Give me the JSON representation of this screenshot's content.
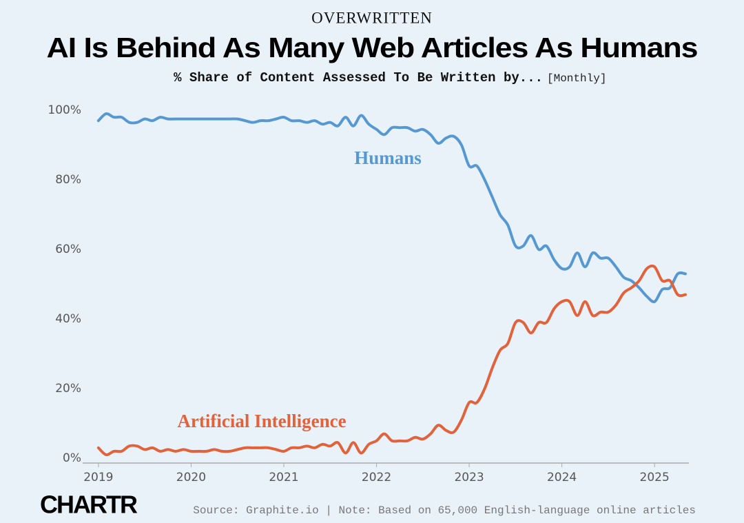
{
  "chart_data": {
    "type": "line",
    "kicker": "OVERWRITTEN",
    "title": "AI Is Behind As Many Web Articles As Humans",
    "subtitle": "% Share of Content Assessed To Be Written by...",
    "frequency": "[Monthly]",
    "source": "Source: Graphite.io | Note: Based on 65,000 English-language online articles",
    "brand": "CHARTR",
    "x": [
      2019,
      2019.083,
      2019.167,
      2019.25,
      2019.333,
      2019.417,
      2019.5,
      2019.583,
      2019.667,
      2019.75,
      2019.833,
      2019.917,
      2020,
      2020.083,
      2020.167,
      2020.25,
      2020.333,
      2020.417,
      2020.5,
      2020.583,
      2020.667,
      2020.75,
      2020.833,
      2020.917,
      2021,
      2021.083,
      2021.167,
      2021.25,
      2021.333,
      2021.417,
      2021.5,
      2021.583,
      2021.667,
      2021.75,
      2021.833,
      2021.917,
      2022,
      2022.083,
      2022.167,
      2022.25,
      2022.333,
      2022.417,
      2022.5,
      2022.583,
      2022.667,
      2022.75,
      2022.833,
      2022.917,
      2023,
      2023.083,
      2023.167,
      2023.25,
      2023.333,
      2023.417,
      2023.5,
      2023.583,
      2023.667,
      2023.75,
      2023.833,
      2023.917,
      2024,
      2024.083,
      2024.167,
      2024.25,
      2024.333,
      2024.417,
      2024.5,
      2024.583,
      2024.667,
      2024.75,
      2024.833,
      2024.917,
      2025,
      2025.083,
      2025.167,
      2025.25,
      2025.333
    ],
    "series": [
      {
        "name": "Humans",
        "color": "#5698d2",
        "values": [
          97,
          99,
          98,
          98,
          96.5,
          96.5,
          97.5,
          97,
          98,
          97.5,
          97.5,
          97.5,
          97.5,
          97.5,
          97.5,
          97.5,
          97.5,
          97.5,
          97.5,
          97,
          96.5,
          97,
          97,
          97.5,
          98,
          97,
          97,
          96.5,
          97,
          96,
          96.5,
          95.5,
          98,
          95.5,
          98.5,
          96,
          94.5,
          93,
          95,
          95,
          95,
          94,
          94.5,
          93,
          90.5,
          92,
          92.5,
          90,
          84,
          84,
          80,
          75,
          70,
          67,
          61,
          61,
          64,
          60,
          61,
          57,
          54.5,
          55,
          59,
          55,
          59,
          57.5,
          57.5,
          55,
          52,
          51,
          49,
          46.5,
          45,
          48.5,
          49,
          53,
          53
        ]
      },
      {
        "name": "Artificial Intelligence",
        "color": "#e1623b",
        "values": [
          3,
          1,
          2,
          2,
          3.5,
          3.5,
          2.5,
          3,
          2,
          2.5,
          2,
          2.5,
          2,
          2,
          2,
          2.5,
          2,
          2,
          2.5,
          3,
          3,
          3,
          3,
          2.5,
          2,
          3,
          3,
          3.5,
          3,
          4,
          3.5,
          4.5,
          1.5,
          4.5,
          1.5,
          4,
          5,
          7,
          5,
          5,
          5,
          6,
          5.5,
          7,
          9.5,
          8,
          7.5,
          11,
          16,
          16,
          20,
          26,
          31,
          33,
          39,
          39,
          36,
          39,
          39,
          43,
          45,
          45,
          41,
          45,
          41,
          42,
          42,
          44,
          47.5,
          49,
          51,
          54.5,
          55,
          51,
          51,
          47,
          47
        ]
      }
    ],
    "xlim": [
      2018.83,
      2025.4
    ],
    "xticks": [
      2019,
      2020,
      2021,
      2022,
      2023,
      2024,
      2025
    ],
    "ylim": [
      0,
      100
    ],
    "yticks": [
      {
        "value": 0,
        "label": "0%"
      },
      {
        "value": 20,
        "label": "20%"
      },
      {
        "value": 40,
        "label": "40%"
      },
      {
        "value": 60,
        "label": "60%"
      },
      {
        "value": 80,
        "label": "80%"
      },
      {
        "value": 100,
        "label": "100%"
      }
    ],
    "grid": false
  }
}
